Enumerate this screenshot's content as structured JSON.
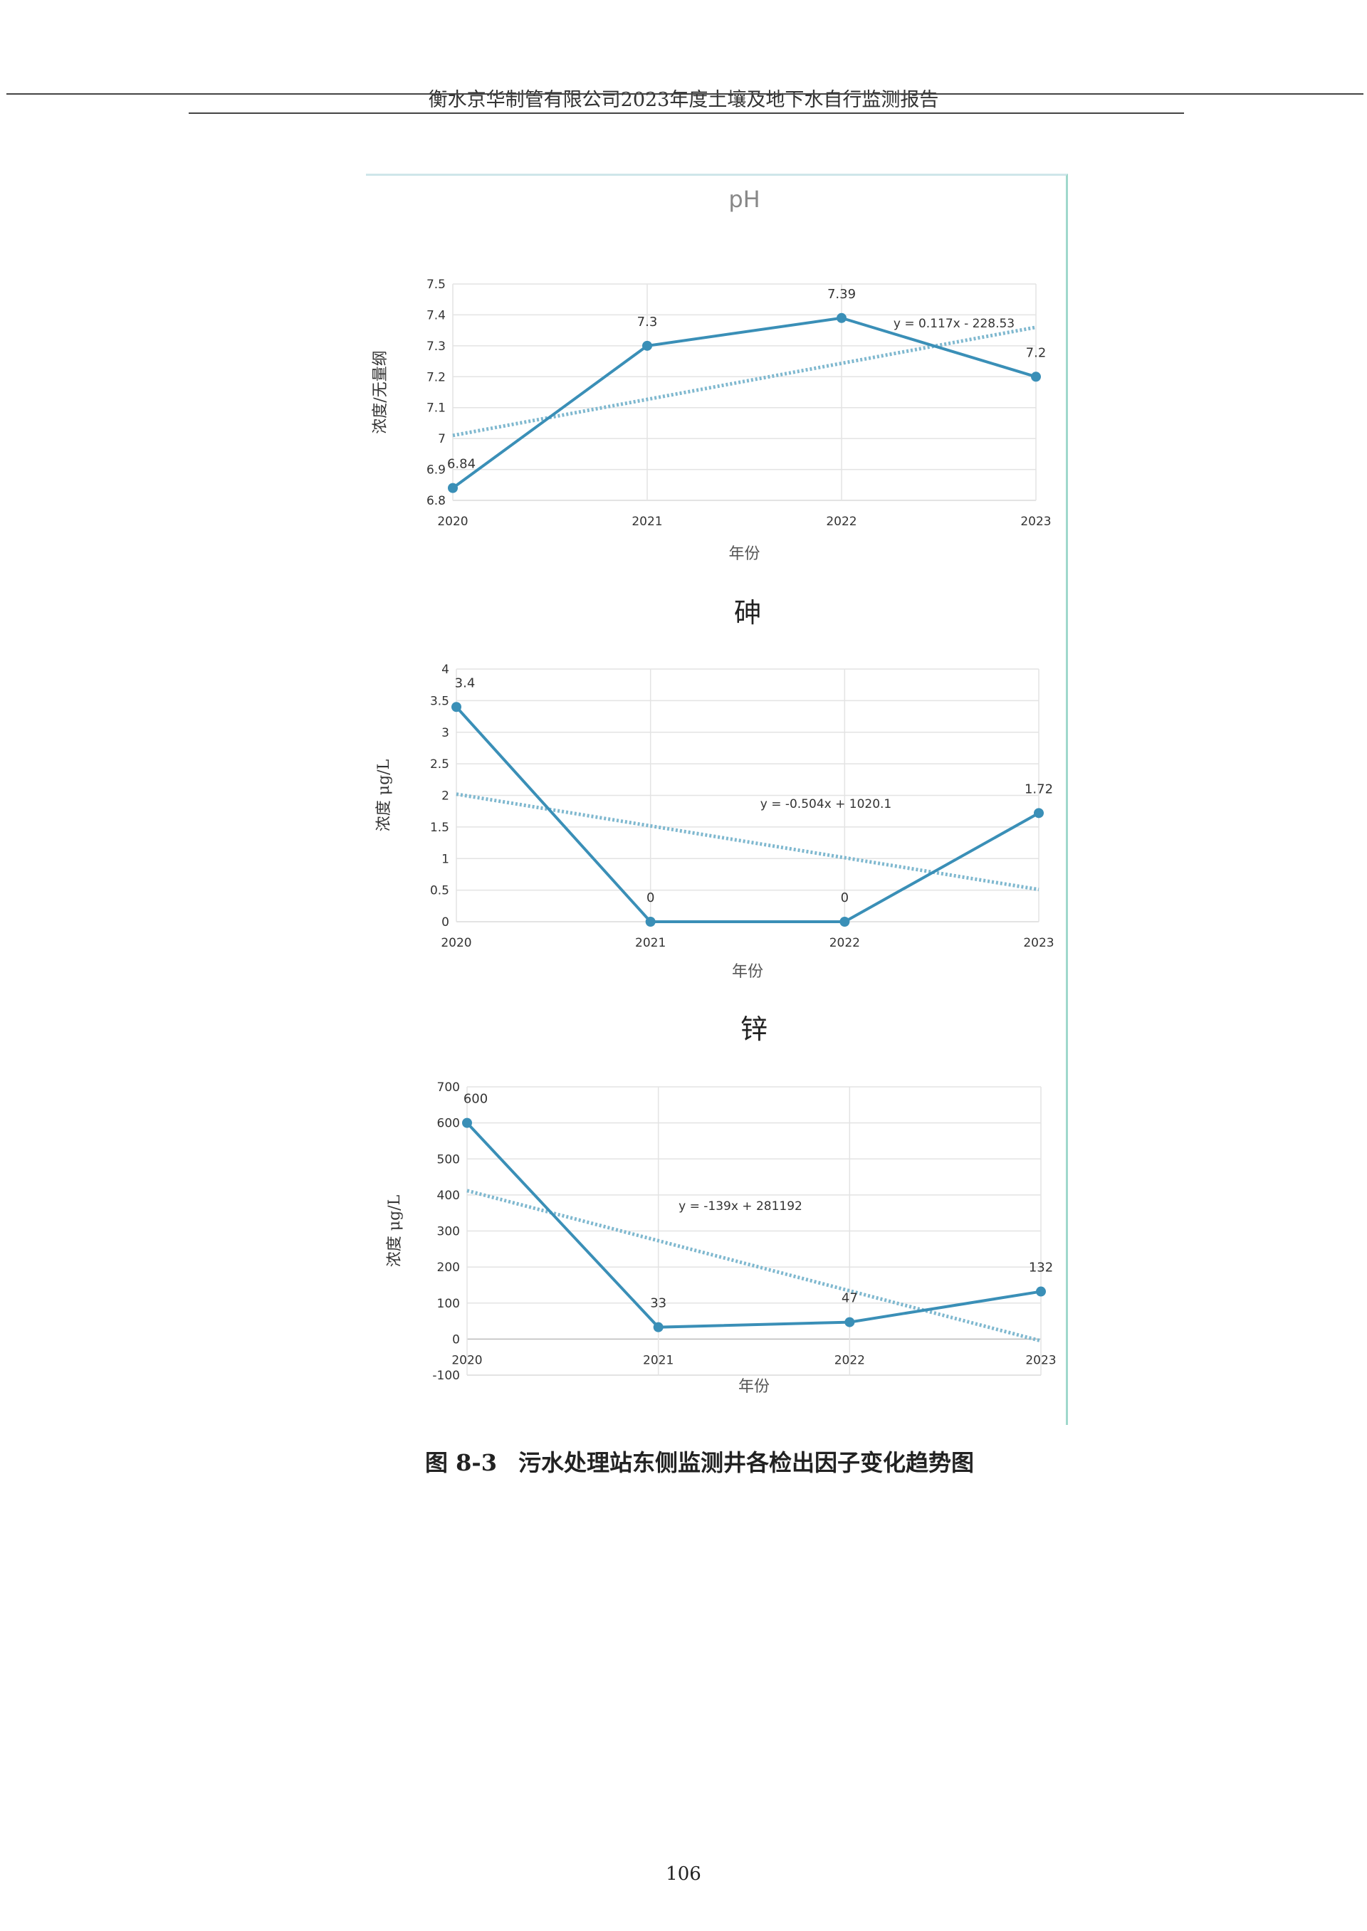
{
  "header": {
    "title": "衡水京华制管有限公司2023年度土壤及地下水自行监测报告"
  },
  "caption": {
    "number": "图 8-3",
    "text": "污水处理站东侧监测井各检出因子变化趋势图"
  },
  "page_number": "106",
  "colors": {
    "series": "#3a8fb7",
    "trendline": "#7fb8cf",
    "grid": "#e3e3e3"
  },
  "chart_data": [
    {
      "type": "line",
      "title": "pH",
      "xlabel": "年份",
      "ylabel": "浓度/无量纲",
      "categories": [
        "2020",
        "2021",
        "2022",
        "2023"
      ],
      "values": [
        6.84,
        7.3,
        7.39,
        7.2
      ],
      "data_labels": [
        "6.84",
        "7.3",
        "7.39",
        "7.2"
      ],
      "ylim": [
        6.8,
        7.5
      ],
      "yticks": [
        "6.8",
        "6.9",
        "7",
        "7.1",
        "7.2",
        "7.3",
        "7.4",
        "7.5"
      ],
      "trendline": {
        "type": "linear",
        "equation": "y = 0.117x - 228.53",
        "start": 7.01,
        "end": 7.36
      },
      "grid": true
    },
    {
      "type": "line",
      "title": "砷",
      "xlabel": "年份",
      "ylabel": "浓度 μg/L",
      "categories": [
        "2020",
        "2021",
        "2022",
        "2023"
      ],
      "values": [
        3.4,
        0,
        0,
        1.72
      ],
      "data_labels": [
        "3.4",
        "0",
        "0",
        "1.72"
      ],
      "ylim": [
        0,
        4
      ],
      "yticks": [
        "0",
        "0.5",
        "1",
        "1.5",
        "2",
        "2.5",
        "3",
        "3.5",
        "4"
      ],
      "trendline": {
        "type": "linear",
        "equation": "y = -0.504x + 1020.1",
        "start": 2.02,
        "end": 0.51
      },
      "grid": true
    },
    {
      "type": "line",
      "title": "锌",
      "xlabel": "年份",
      "ylabel": "浓度 μg/L",
      "categories": [
        "2020",
        "2021",
        "2022",
        "2023"
      ],
      "values": [
        600,
        33,
        47,
        132
      ],
      "data_labels": [
        "600",
        "33",
        "47",
        "132"
      ],
      "ylim": [
        -100,
        700
      ],
      "yticks": [
        "-100",
        "0",
        "100",
        "200",
        "300",
        "400",
        "500",
        "600",
        "700"
      ],
      "trendline": {
        "type": "linear",
        "equation": "y = -139x + 281192",
        "start": 412,
        "end": -5
      },
      "grid": true
    }
  ]
}
